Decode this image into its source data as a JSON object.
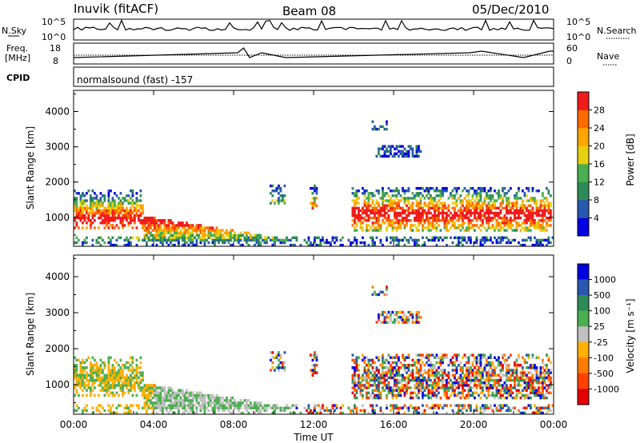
{
  "header": {
    "station": "Inuvik (fitACF)",
    "beam": "Beam 08",
    "date": "05/Dec/2010"
  },
  "top_panels": {
    "nsky_label": "N.Sky",
    "nsky_ticks": [
      "10^5",
      "10^0"
    ],
    "nsearch_label": "N.Search",
    "nsearch_ticks": [
      "10^5",
      "10^0"
    ],
    "freq_label_1": "Freq.",
    "freq_label_2": "[MHz]",
    "freq_ticks": [
      "18",
      "8"
    ],
    "nave_label": "Nave",
    "nave_ticks": [
      "60",
      "0"
    ],
    "cpid_label": "CPID",
    "cpid_value": "normalsound (fast) -157"
  },
  "chart_data": [
    {
      "type": "heatmap",
      "name": "power",
      "ylabel": "Slant Range [km]",
      "yticks": [
        1000,
        2000,
        3000,
        4000
      ],
      "xticks": [
        "00:00",
        "04:00",
        "08:00",
        "12:00",
        "16:00",
        "20:00",
        "00:00"
      ],
      "xlim_hours": [
        0,
        24
      ],
      "ylim_km": [
        180,
        4600
      ],
      "colorbar": {
        "label": "Power [dB]",
        "ticks": [
          "28",
          "24",
          "20",
          "16",
          "12",
          "8",
          "4"
        ],
        "colors": [
          "#0000e0",
          "#2858b0",
          "#2e8b57",
          "#4caf50",
          "#e8d010",
          "#ffa500",
          "#ff6a00",
          "#f01c1c"
        ]
      }
    },
    {
      "type": "heatmap",
      "name": "velocity",
      "ylabel": "Slant Range [km]",
      "yticks": [
        1000,
        2000,
        3000,
        4000
      ],
      "xticks": [
        "00:00",
        "04:00",
        "08:00",
        "12:00",
        "16:00",
        "20:00",
        "00:00"
      ],
      "xlabel": "Time UT",
      "xlim_hours": [
        0,
        24
      ],
      "ylim_km": [
        180,
        4600
      ],
      "colorbar": {
        "label": "Velocity [m s⁻¹]",
        "ticks": [
          "1000",
          "500",
          "100",
          "25",
          "-25",
          "-100",
          "-500",
          "-1000"
        ],
        "colors": [
          "#0000e0",
          "#2858b0",
          "#2e8b57",
          "#4caf50",
          "#c0c0c0",
          "#ffb000",
          "#ff7a00",
          "#ff4000",
          "#e60000"
        ]
      }
    }
  ]
}
